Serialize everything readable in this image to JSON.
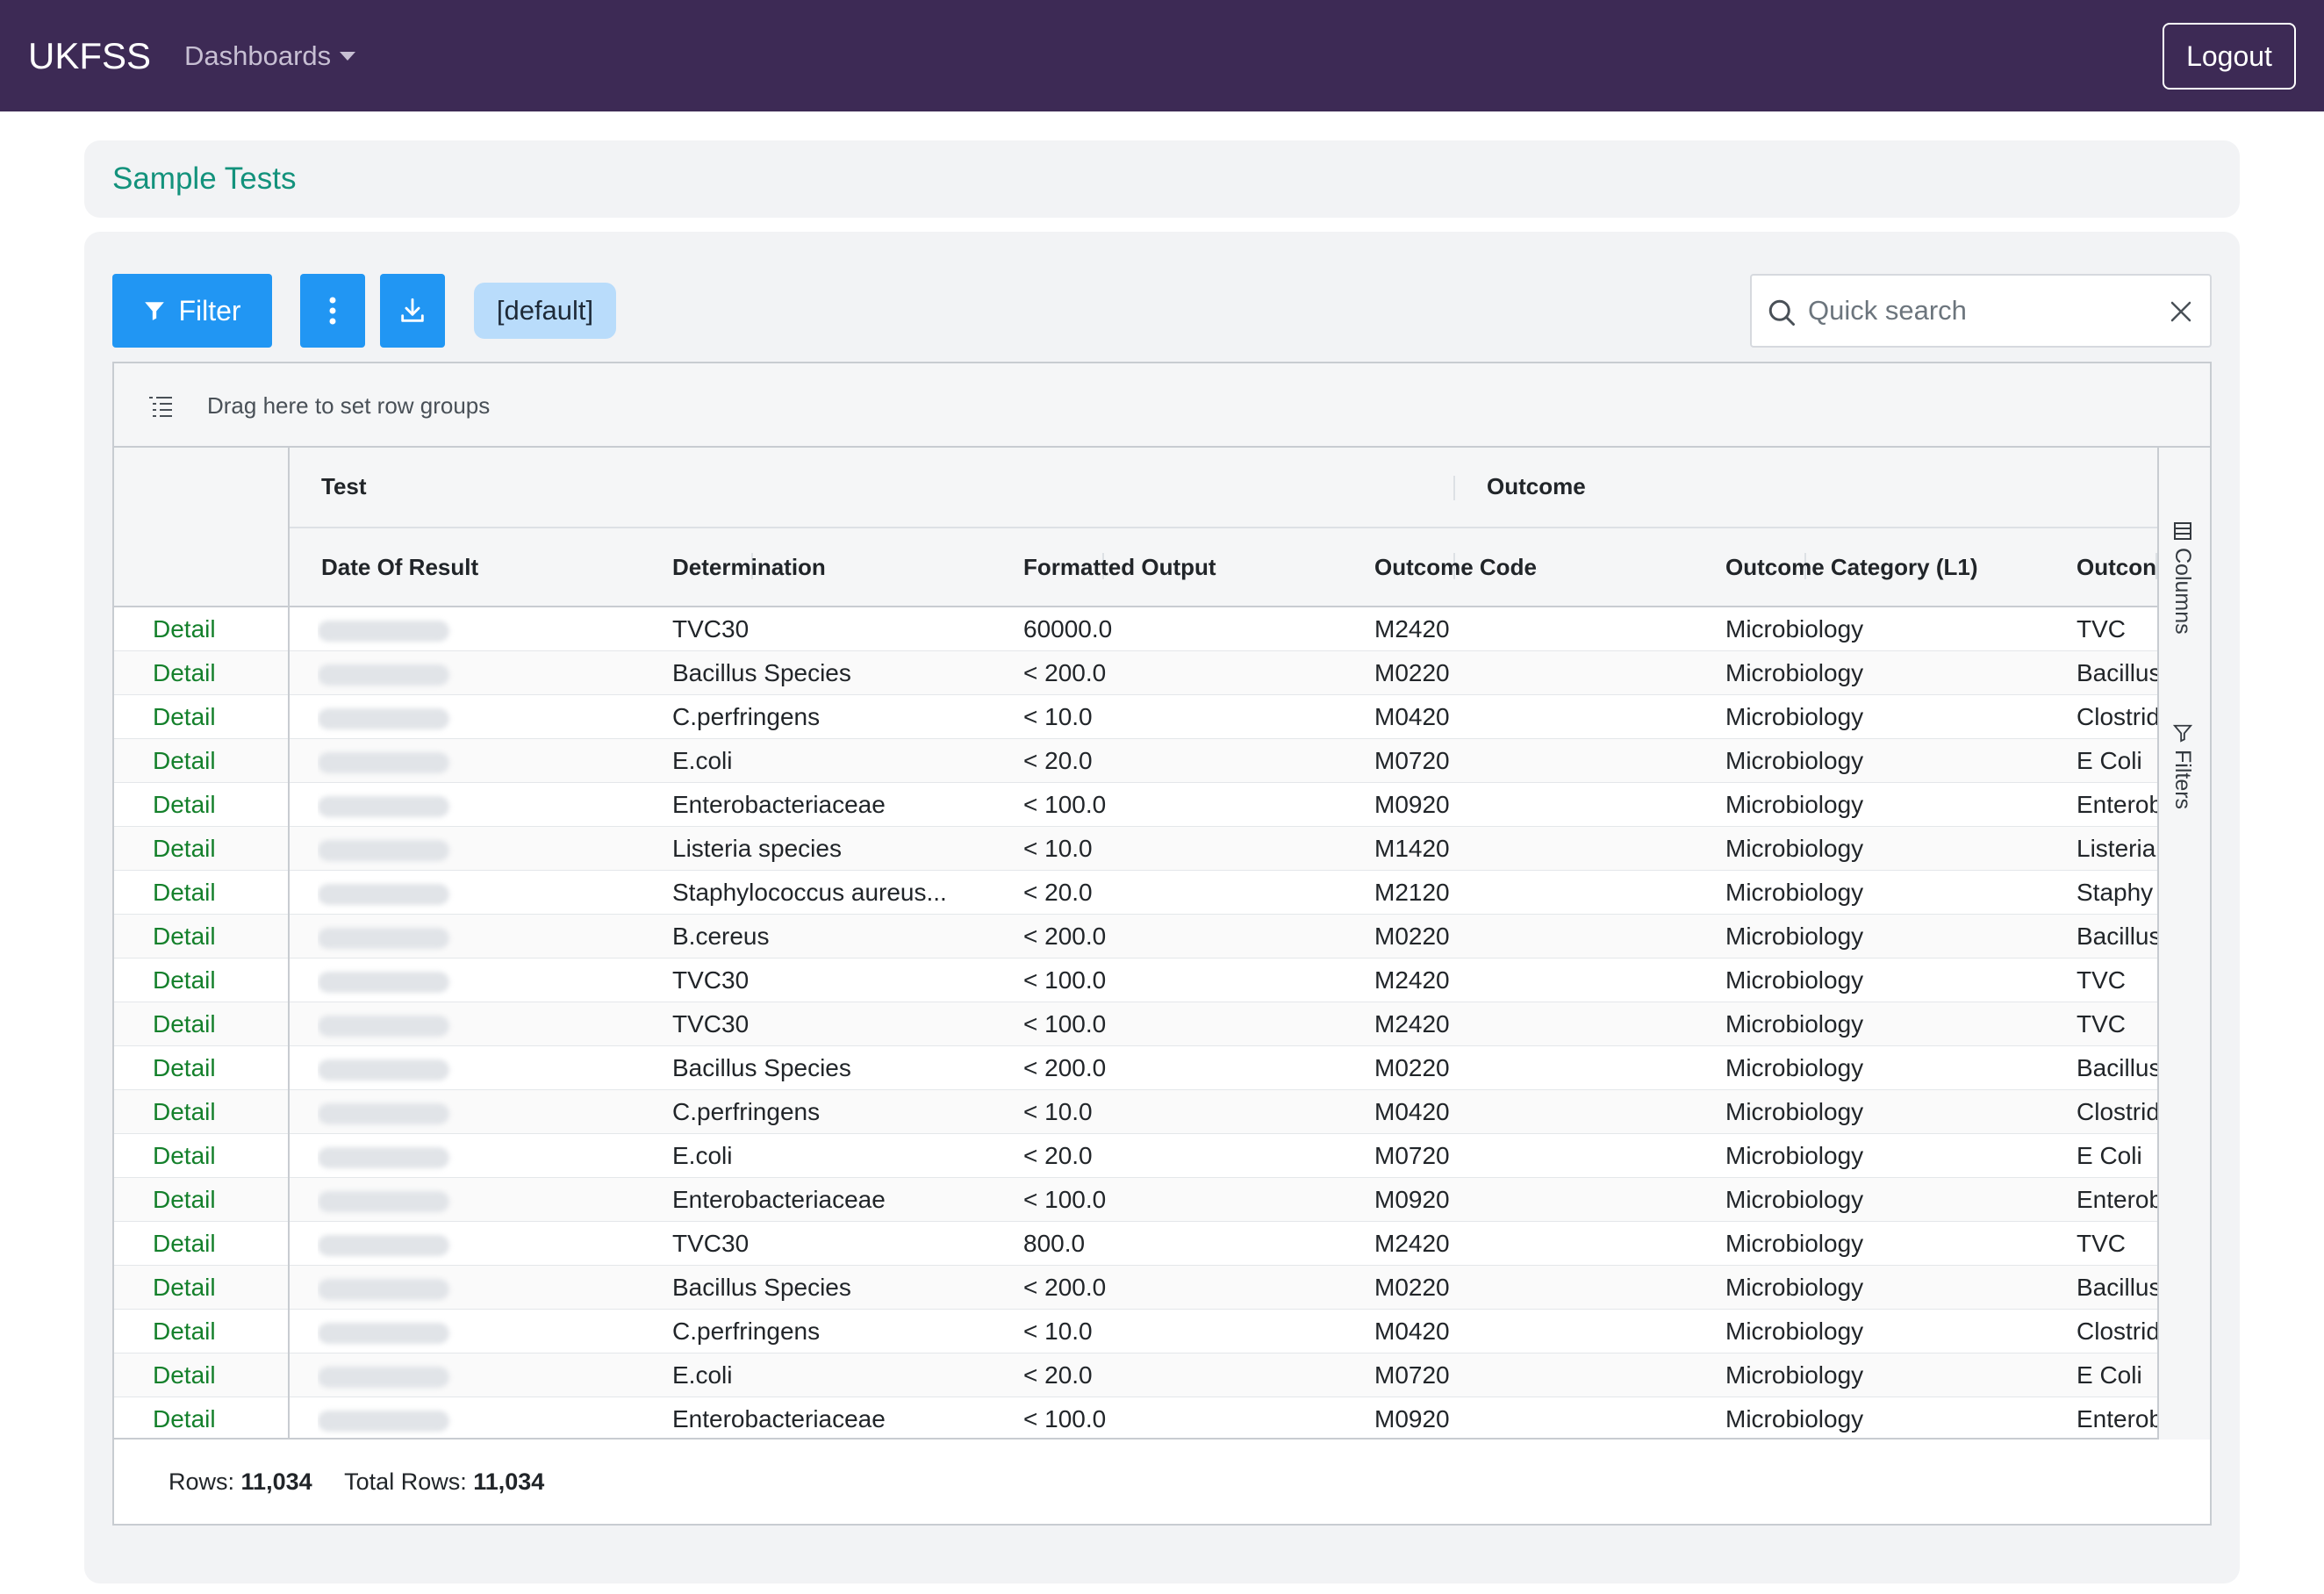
{
  "navbar": {
    "brand": "UKFSS",
    "dashboards_label": "Dashboards",
    "logout_label": "Logout"
  },
  "page": {
    "title": "Sample Tests"
  },
  "toolbar": {
    "filter_label": "Filter",
    "more_icon": "vertical-ellipsis-icon",
    "download_icon": "download-icon",
    "view_tag": "[default]",
    "search_placeholder": "Quick search"
  },
  "grid": {
    "row_group_text": "Drag here to set row groups",
    "groups": [
      {
        "label": "Test"
      },
      {
        "label": "Outcome"
      }
    ],
    "columns": [
      {
        "key": "date",
        "label": "Date Of Result"
      },
      {
        "key": "determination",
        "label": "Determination"
      },
      {
        "key": "output",
        "label": "Formatted Output"
      },
      {
        "key": "code",
        "label": "Outcome Code"
      },
      {
        "key": "category",
        "label": "Outcome Category (L1)"
      },
      {
        "key": "outcome",
        "label": "Outcon"
      }
    ],
    "side_tabs": [
      {
        "label": "Columns",
        "icon": "columns-icon"
      },
      {
        "label": "Filters",
        "icon": "filter-icon"
      }
    ],
    "detail_label": "Detail",
    "rows": [
      {
        "determination": "TVC30",
        "output": "60000.0",
        "code": "M2420",
        "category": "Microbiology",
        "outcome": "TVC"
      },
      {
        "determination": "Bacillus Species",
        "output": "< 200.0",
        "code": "M0220",
        "category": "Microbiology",
        "outcome": "Bacillus"
      },
      {
        "determination": "C.perfringens",
        "output": "< 10.0",
        "code": "M0420",
        "category": "Microbiology",
        "outcome": "Clostrid"
      },
      {
        "determination": "E.coli",
        "output": "< 20.0",
        "code": "M0720",
        "category": "Microbiology",
        "outcome": "E Coli"
      },
      {
        "determination": "Enterobacteriaceae",
        "output": "< 100.0",
        "code": "M0920",
        "category": "Microbiology",
        "outcome": "Enterob"
      },
      {
        "determination": "Listeria species",
        "output": "< 10.0",
        "code": "M1420",
        "category": "Microbiology",
        "outcome": "Listeria"
      },
      {
        "determination": "Staphylococcus aureus...",
        "output": "< 20.0",
        "code": "M2120",
        "category": "Microbiology",
        "outcome": "Staphy"
      },
      {
        "determination": "B.cereus",
        "output": "< 200.0",
        "code": "M0220",
        "category": "Microbiology",
        "outcome": "Bacillus"
      },
      {
        "determination": "TVC30",
        "output": "< 100.0",
        "code": "M2420",
        "category": "Microbiology",
        "outcome": "TVC"
      },
      {
        "determination": "TVC30",
        "output": "< 100.0",
        "code": "M2420",
        "category": "Microbiology",
        "outcome": "TVC"
      },
      {
        "determination": "Bacillus Species",
        "output": "< 200.0",
        "code": "M0220",
        "category": "Microbiology",
        "outcome": "Bacillus"
      },
      {
        "determination": "C.perfringens",
        "output": "< 10.0",
        "code": "M0420",
        "category": "Microbiology",
        "outcome": "Clostrid"
      },
      {
        "determination": "E.coli",
        "output": "< 20.0",
        "code": "M0720",
        "category": "Microbiology",
        "outcome": "E Coli"
      },
      {
        "determination": "Enterobacteriaceae",
        "output": "< 100.0",
        "code": "M0920",
        "category": "Microbiology",
        "outcome": "Enterob"
      },
      {
        "determination": "TVC30",
        "output": "800.0",
        "code": "M2420",
        "category": "Microbiology",
        "outcome": "TVC"
      },
      {
        "determination": "Bacillus Species",
        "output": "< 200.0",
        "code": "M0220",
        "category": "Microbiology",
        "outcome": "Bacillus"
      },
      {
        "determination": "C.perfringens",
        "output": "< 10.0",
        "code": "M0420",
        "category": "Microbiology",
        "outcome": "Clostrid"
      },
      {
        "determination": "E.coli",
        "output": "< 20.0",
        "code": "M0720",
        "category": "Microbiology",
        "outcome": "E Coli"
      },
      {
        "determination": "Enterobacteriaceae",
        "output": "< 100.0",
        "code": "M0920",
        "category": "Microbiology",
        "outcome": "Enterob"
      }
    ]
  },
  "footer": {
    "rows_label": "Rows:",
    "rows_value": "11,034",
    "total_label": "Total Rows:",
    "total_value": "11,034"
  }
}
